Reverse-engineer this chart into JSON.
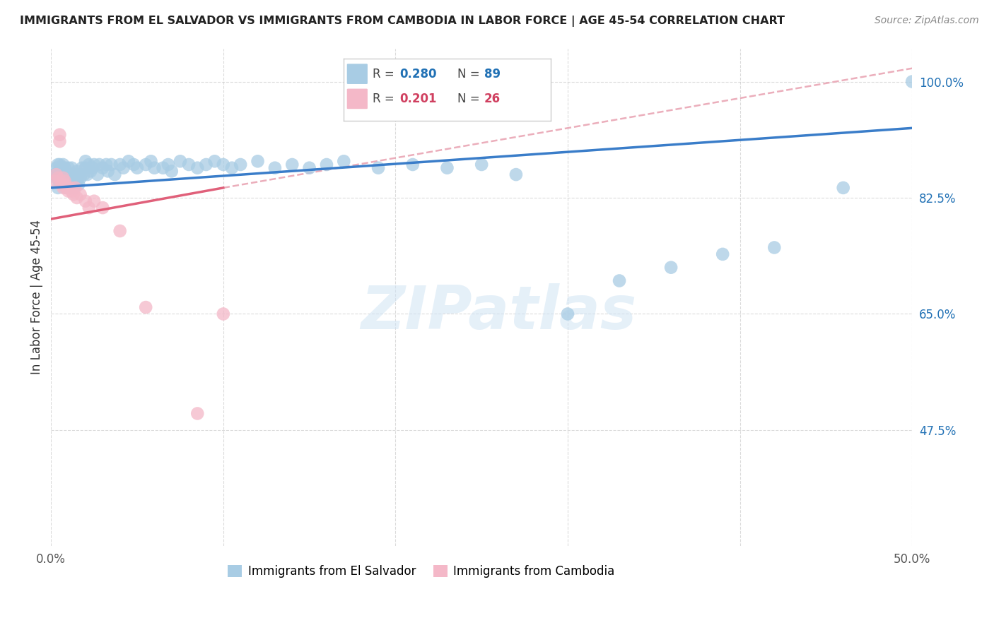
{
  "title": "IMMIGRANTS FROM EL SALVADOR VS IMMIGRANTS FROM CAMBODIA IN LABOR FORCE | AGE 45-54 CORRELATION CHART",
  "source": "Source: ZipAtlas.com",
  "ylabel": "In Labor Force | Age 45-54",
  "x_min": 0.0,
  "x_max": 0.5,
  "y_min": 0.3,
  "y_max": 1.05,
  "x_ticks": [
    0.0,
    0.1,
    0.2,
    0.3,
    0.4,
    0.5
  ],
  "x_tick_labels": [
    "0.0%",
    "",
    "",
    "",
    "",
    "50.0%"
  ],
  "y_ticks_right": [
    0.475,
    0.65,
    0.825,
    1.0
  ],
  "y_tick_labels_right": [
    "47.5%",
    "65.0%",
    "82.5%",
    "100.0%"
  ],
  "color_blue": "#a8cce4",
  "color_blue_line": "#3a7dc9",
  "color_pink": "#f4b8c8",
  "color_pink_line": "#e0607a",
  "color_dashed": "#e8a0b0",
  "color_blue_text": "#2171b5",
  "color_pink_text": "#d04060",
  "color_grid": "#cccccc",
  "watermark": "ZIPatlas",
  "es_x": [
    0.002,
    0.003,
    0.003,
    0.004,
    0.004,
    0.005,
    0.005,
    0.005,
    0.006,
    0.006,
    0.006,
    0.007,
    0.007,
    0.007,
    0.008,
    0.008,
    0.008,
    0.009,
    0.009,
    0.01,
    0.01,
    0.01,
    0.011,
    0.011,
    0.012,
    0.012,
    0.012,
    0.013,
    0.013,
    0.014,
    0.014,
    0.015,
    0.015,
    0.016,
    0.016,
    0.017,
    0.018,
    0.019,
    0.02,
    0.02,
    0.021,
    0.022,
    0.023,
    0.024,
    0.025,
    0.027,
    0.028,
    0.03,
    0.032,
    0.033,
    0.035,
    0.037,
    0.04,
    0.042,
    0.045,
    0.048,
    0.05,
    0.055,
    0.058,
    0.06,
    0.065,
    0.068,
    0.07,
    0.075,
    0.08,
    0.085,
    0.09,
    0.095,
    0.1,
    0.105,
    0.11,
    0.12,
    0.13,
    0.14,
    0.15,
    0.16,
    0.17,
    0.19,
    0.21,
    0.23,
    0.25,
    0.27,
    0.3,
    0.33,
    0.36,
    0.39,
    0.42,
    0.46,
    0.5
  ],
  "es_y": [
    0.86,
    0.855,
    0.87,
    0.84,
    0.875,
    0.85,
    0.865,
    0.875,
    0.855,
    0.86,
    0.87,
    0.845,
    0.86,
    0.875,
    0.85,
    0.855,
    0.87,
    0.84,
    0.86,
    0.845,
    0.855,
    0.87,
    0.84,
    0.86,
    0.845,
    0.855,
    0.87,
    0.84,
    0.855,
    0.845,
    0.86,
    0.85,
    0.865,
    0.845,
    0.86,
    0.855,
    0.87,
    0.86,
    0.87,
    0.88,
    0.86,
    0.875,
    0.865,
    0.87,
    0.875,
    0.86,
    0.875,
    0.87,
    0.875,
    0.865,
    0.875,
    0.86,
    0.875,
    0.87,
    0.88,
    0.875,
    0.87,
    0.875,
    0.88,
    0.87,
    0.87,
    0.875,
    0.865,
    0.88,
    0.875,
    0.87,
    0.875,
    0.88,
    0.875,
    0.87,
    0.875,
    0.88,
    0.87,
    0.875,
    0.87,
    0.875,
    0.88,
    0.87,
    0.875,
    0.87,
    0.875,
    0.86,
    0.65,
    0.7,
    0.72,
    0.74,
    0.75,
    0.84,
    1.0
  ],
  "cam_x": [
    0.002,
    0.003,
    0.004,
    0.005,
    0.005,
    0.006,
    0.007,
    0.007,
    0.008,
    0.008,
    0.009,
    0.01,
    0.011,
    0.012,
    0.013,
    0.014,
    0.015,
    0.017,
    0.02,
    0.022,
    0.025,
    0.03,
    0.04,
    0.055,
    0.085,
    0.1
  ],
  "cam_y": [
    0.85,
    0.86,
    0.855,
    0.92,
    0.91,
    0.845,
    0.84,
    0.855,
    0.845,
    0.85,
    0.84,
    0.835,
    0.84,
    0.835,
    0.83,
    0.84,
    0.825,
    0.83,
    0.82,
    0.81,
    0.82,
    0.81,
    0.775,
    0.66,
    0.5,
    0.65
  ],
  "es_line_x0": 0.0,
  "es_line_x1": 0.5,
  "es_line_y0": 0.84,
  "es_line_y1": 0.93,
  "cam_line_x0": 0.0,
  "cam_line_x1": 0.1,
  "cam_line_y0": 0.793,
  "cam_line_y1": 0.84,
  "dash_line_x0": 0.1,
  "dash_line_x1": 0.5,
  "dash_line_y0": 0.84,
  "dash_line_y1": 1.02
}
